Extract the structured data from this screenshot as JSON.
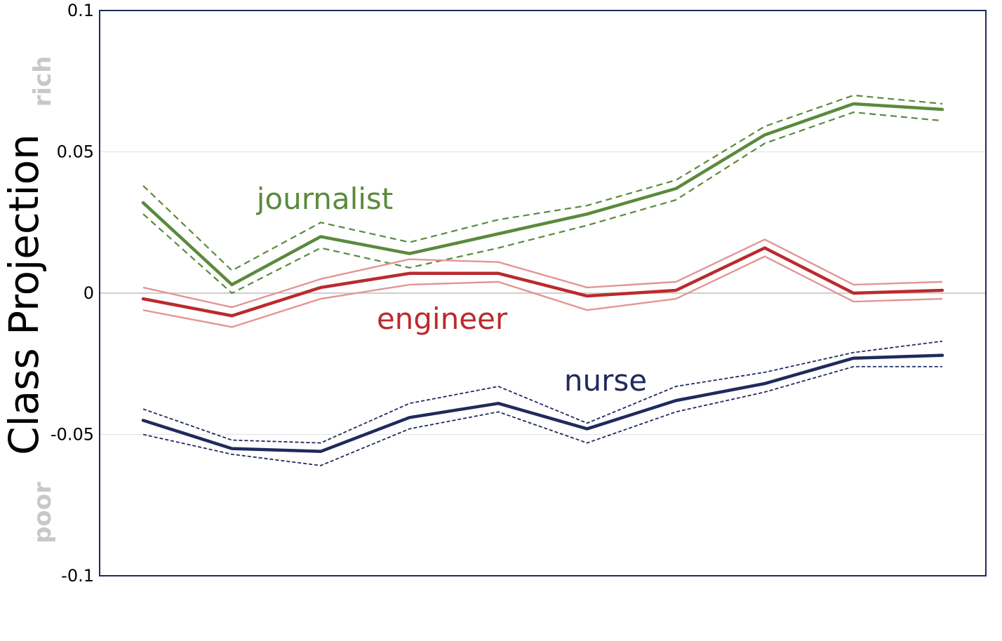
{
  "chart_data": {
    "type": "line",
    "title": "",
    "xlabel": "",
    "ylabel": "Class Projection",
    "ylim": [
      -0.1,
      0.1
    ],
    "yticks": [
      0.1,
      0.05,
      0,
      -0.05,
      -0.1
    ],
    "ytick_labels": [
      "0.1",
      "0.05",
      "0",
      "-0.05",
      "-0.1"
    ],
    "pole_labels": {
      "top": "rich",
      "bottom": "poor"
    },
    "grid": "horizontal at 0.05, 0, -0.05",
    "legend": "none; series labels are placed inline on the plot",
    "x": [
      1,
      2,
      3,
      4,
      5,
      6,
      7,
      8,
      9,
      10
    ],
    "series": [
      {
        "name": "journalist",
        "color": "#5a8a3c",
        "band_style": "dashed",
        "values": [
          0.032,
          0.003,
          0.02,
          0.014,
          0.021,
          0.028,
          0.037,
          0.056,
          0.067,
          0.065
        ],
        "upper": [
          0.038,
          0.008,
          0.025,
          0.018,
          0.026,
          0.031,
          0.04,
          0.059,
          0.07,
          0.067
        ],
        "lower": [
          0.028,
          0.0,
          0.016,
          0.009,
          0.016,
          0.024,
          0.033,
          0.053,
          0.064,
          0.061
        ]
      },
      {
        "name": "engineer",
        "color": "#bb2a2d",
        "band_color": "#e39595",
        "band_style": "solid",
        "values": [
          -0.002,
          -0.008,
          0.002,
          0.007,
          0.007,
          -0.001,
          0.001,
          0.016,
          0.0,
          0.001
        ],
        "upper": [
          0.002,
          -0.005,
          0.005,
          0.012,
          0.011,
          0.002,
          0.004,
          0.019,
          0.003,
          0.004
        ],
        "lower": [
          -0.006,
          -0.012,
          -0.002,
          0.003,
          0.004,
          -0.006,
          -0.002,
          0.013,
          -0.003,
          -0.002
        ]
      },
      {
        "name": "nurse",
        "color": "#1f2a5c",
        "band_style": "dotted",
        "values": [
          -0.045,
          -0.055,
          -0.056,
          -0.044,
          -0.039,
          -0.048,
          -0.038,
          -0.032,
          -0.023,
          -0.022
        ],
        "upper": [
          -0.041,
          -0.052,
          -0.053,
          -0.039,
          -0.033,
          -0.046,
          -0.033,
          -0.028,
          -0.021,
          -0.017
        ],
        "lower": [
          -0.05,
          -0.057,
          -0.061,
          -0.048,
          -0.042,
          -0.053,
          -0.042,
          -0.035,
          -0.026,
          -0.026
        ]
      }
    ]
  }
}
